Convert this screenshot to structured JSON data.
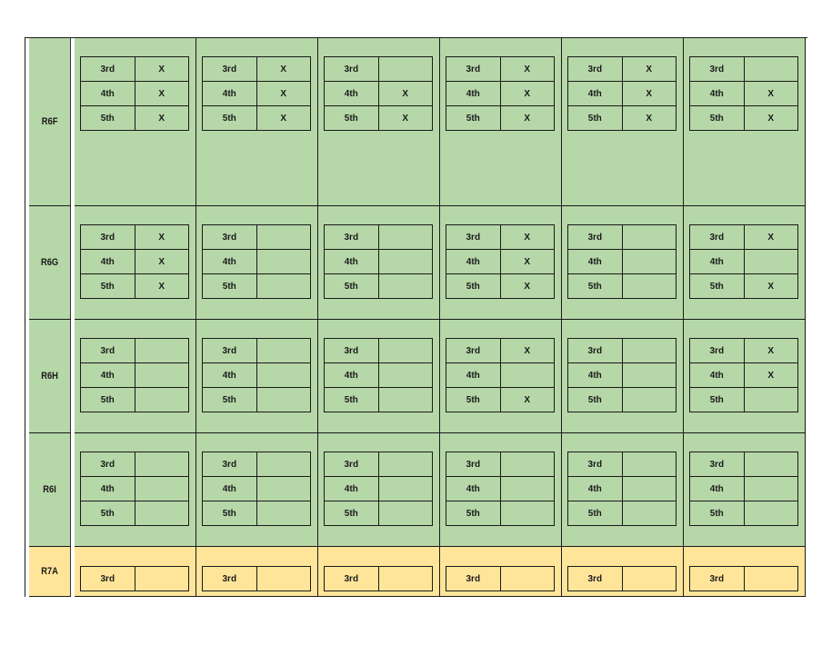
{
  "rows": [
    {
      "label": "R6F",
      "color": "#b6d7a8",
      "grades": [
        "3rd",
        "4th",
        "5th"
      ],
      "cells": [
        [
          "X",
          "X",
          "X"
        ],
        [
          "X",
          "X",
          "X"
        ],
        [
          "",
          "X",
          "X"
        ],
        [
          "X",
          "X",
          "X"
        ],
        [
          "X",
          "X",
          "X"
        ],
        [
          "",
          "X",
          "X"
        ]
      ]
    },
    {
      "label": "R6G",
      "color": "#b6d7a8",
      "grades": [
        "3rd",
        "4th",
        "5th"
      ],
      "cells": [
        [
          "X",
          "X",
          "X"
        ],
        [
          "",
          "",
          ""
        ],
        [
          "",
          "",
          ""
        ],
        [
          "X",
          "X",
          "X"
        ],
        [
          "",
          "",
          ""
        ],
        [
          "X",
          "",
          "X"
        ]
      ]
    },
    {
      "label": "R6H",
      "color": "#b6d7a8",
      "grades": [
        "3rd",
        "4th",
        "5th"
      ],
      "cells": [
        [
          "",
          "",
          ""
        ],
        [
          "",
          "",
          ""
        ],
        [
          "",
          "",
          ""
        ],
        [
          "X",
          "",
          "X"
        ],
        [
          "",
          "",
          ""
        ],
        [
          "X",
          "X",
          ""
        ]
      ]
    },
    {
      "label": "R6I",
      "color": "#b6d7a8",
      "grades": [
        "3rd",
        "4th",
        "5th"
      ],
      "cells": [
        [
          "",
          "",
          ""
        ],
        [
          "",
          "",
          ""
        ],
        [
          "",
          "",
          ""
        ],
        [
          "",
          "",
          ""
        ],
        [
          "",
          "",
          ""
        ],
        [
          "",
          "",
          ""
        ]
      ]
    },
    {
      "label": "R7A",
      "color": "#ffe599",
      "grades": [
        "3rd"
      ],
      "cells": [
        [
          ""
        ],
        [
          ""
        ],
        [
          ""
        ],
        [
          ""
        ],
        [
          ""
        ],
        [
          ""
        ]
      ]
    }
  ]
}
